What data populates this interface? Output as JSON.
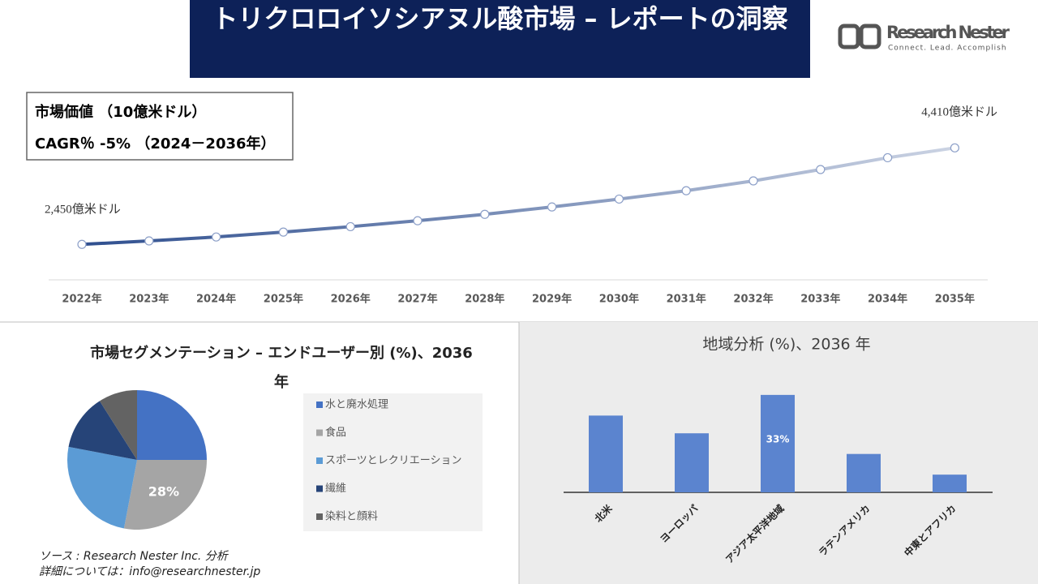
{
  "header": {
    "title": "トリクロロイソシアヌル酸市場 – レポートの洞察",
    "logo_name": "Research Nester",
    "logo_tagline": "Connect. Lead. Accomplish"
  },
  "market_box": {
    "line1": "市場価値 （10億米ドル）",
    "line2": "CAGR％ -5% （2024－2036年）"
  },
  "chart_data": [
    {
      "type": "line",
      "categories": [
        "2022年",
        "2023年",
        "2024年",
        "2025年",
        "2026年",
        "2027年",
        "2028年",
        "2029年",
        "2030年",
        "2031年",
        "2032年",
        "2033年",
        "2034年",
        "2035年"
      ],
      "values": [
        2450,
        2520,
        2600,
        2700,
        2810,
        2930,
        3060,
        3210,
        3370,
        3540,
        3740,
        3970,
        4210,
        4410
      ],
      "value_labels": [
        "2,450億米ドル",
        null,
        null,
        null,
        null,
        null,
        null,
        null,
        null,
        null,
        null,
        null,
        null,
        "4,410億米ドル"
      ],
      "color": "#2f4f8f"
    },
    {
      "type": "pie",
      "title": "市場セグメンテーション – エンドユーザー別 (%)、2036年",
      "categories": [
        "水と廃水処理",
        "食品",
        "スポーツとレクリエーション",
        "繊維",
        "染料と顔料"
      ],
      "values": [
        25,
        28,
        25,
        13,
        9
      ],
      "value_labels": [
        null,
        "28%",
        null,
        null,
        null
      ],
      "colors": [
        "#4472c4",
        "#a5a5a5",
        "#5b9bd5",
        "#264478",
        "#636363"
      ]
    },
    {
      "type": "bar",
      "title": "地域分析 (%)、2036 年",
      "categories": [
        "北米",
        "ヨーロッパ",
        "アジア太平洋地域",
        "ラテンアメリカ",
        "中東とアフリカ"
      ],
      "values": [
        26,
        20,
        33,
        13,
        6
      ],
      "value_labels": [
        null,
        null,
        "33%",
        null,
        null
      ],
      "color": "#5b84cf"
    }
  ],
  "footer": {
    "source": "ソース : Research Nester Inc. 分析",
    "contact": "詳細については：info@researchnester.jp"
  }
}
